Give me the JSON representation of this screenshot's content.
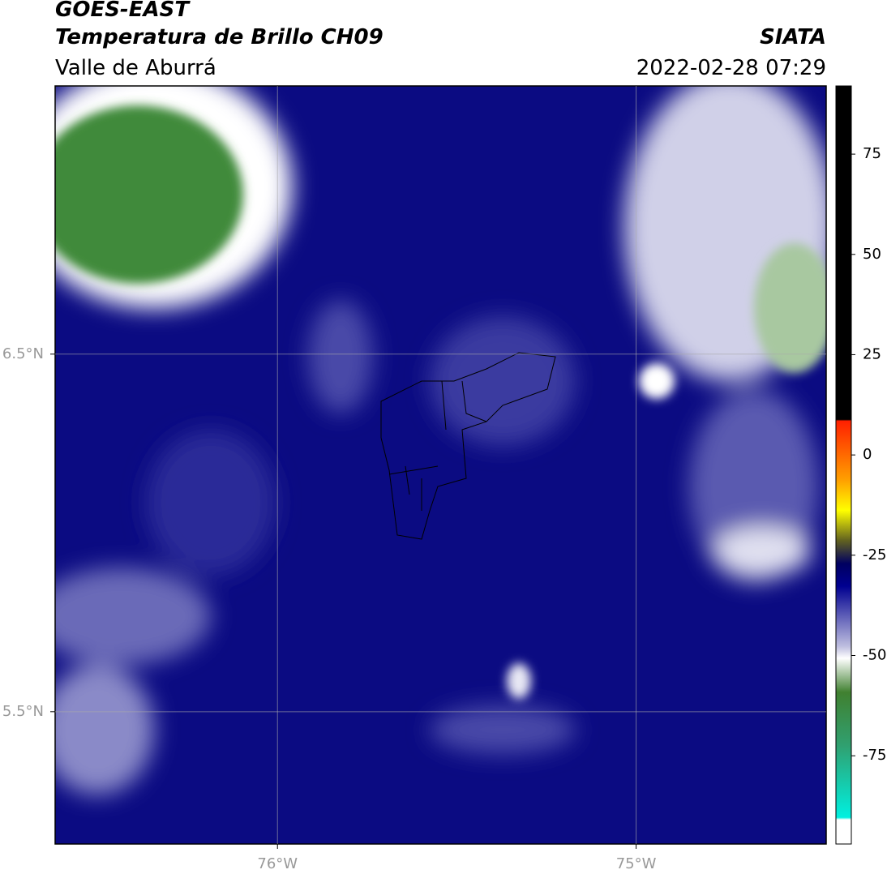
{
  "header": {
    "title": "GOES-EAST",
    "subtitle": "Temperatura de Brillo CH09",
    "region": "Valle de Aburrá",
    "source": "SIATA",
    "datetime": "2022-02-28 07:29"
  },
  "map": {
    "xlim": [
      -76.62,
      -74.47
    ],
    "ylim": [
      5.13,
      7.25
    ],
    "xticks": [
      {
        "value": -76,
        "label": "76°W"
      },
      {
        "value": -75,
        "label": "75°W"
      }
    ],
    "yticks": [
      {
        "value": 6.5,
        "label": "6.5°N"
      },
      {
        "value": 5.5,
        "label": "5.5°N"
      }
    ],
    "grid": true
  },
  "colorbar": {
    "lim": [
      -97,
      92
    ],
    "ticks": [
      75,
      50,
      25,
      0,
      -25,
      -50,
      -75
    ]
  }
}
